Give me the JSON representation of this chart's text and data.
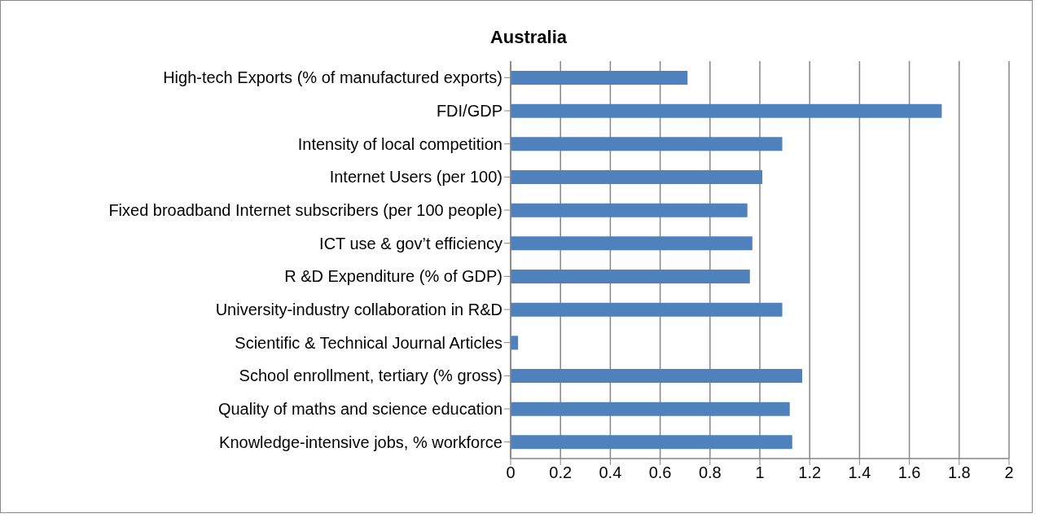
{
  "chart_data": {
    "type": "bar",
    "orientation": "horizontal",
    "title": "Australia",
    "categories": [
      "High-tech Exports (% of manufactured exports)",
      "FDI/GDP",
      "Intensity of  local competition",
      "Internet Users (per 100)",
      "Fixed broadband Internet subscribers (per 100 people)",
      "ICT use & gov’t efficiency",
      "R &D Expenditure (% of GDP)",
      "University-industry collaboration in R&D",
      "Scientific & Technical Journal Articles",
      "School enrollment, tertiary (% gross)",
      "Quality of maths and science education",
      "Knowledge-intensive jobs, % workforce"
    ],
    "values": [
      0.71,
      1.73,
      1.09,
      1.01,
      0.95,
      0.97,
      0.96,
      1.09,
      0.03,
      1.17,
      1.12,
      1.13
    ],
    "color": "#4f81bd",
    "xlim": [
      0,
      2
    ],
    "xticks": [
      0,
      0.2,
      0.4,
      0.6,
      0.8,
      1,
      1.2,
      1.4,
      1.6,
      1.8,
      2
    ],
    "grid": "x"
  }
}
